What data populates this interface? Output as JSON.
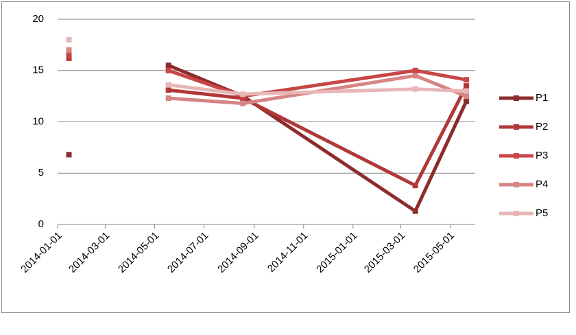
{
  "chart_data": {
    "type": "line",
    "x": [
      "2014-01-15",
      null,
      "2014-05-18",
      "2014-08-18",
      "2015-03-19",
      "2015-05-21"
    ],
    "series": [
      {
        "name": "P1",
        "color": "#8e2b2b",
        "values": [
          6.8,
          null,
          15.5,
          12.5,
          1.3,
          12.0
        ]
      },
      {
        "name": "P2",
        "color": "#b03838",
        "values": [
          16.2,
          null,
          13.1,
          12.3,
          3.8,
          13.5
        ]
      },
      {
        "name": "P3",
        "color": "#c84646",
        "values": [
          16.5,
          null,
          15.0,
          12.5,
          15.0,
          14.1
        ]
      },
      {
        "name": "P4",
        "color": "#d68585",
        "values": [
          17.0,
          null,
          12.3,
          11.8,
          14.5,
          12.5
        ]
      },
      {
        "name": "P5",
        "color": "#e8b6b6",
        "values": [
          18.0,
          null,
          13.6,
          12.7,
          13.2,
          13.0
        ]
      }
    ],
    "xlim": [
      "2014-01-01",
      "2015-06-01"
    ],
    "xticks": [
      "2014-01-01",
      "2014-03-01",
      "2014-05-01",
      "2014-07-01",
      "2014-09-01",
      "2014-11-01",
      "2015-01-01",
      "2015-03-01",
      "2015-05-01"
    ],
    "ylim": [
      0,
      20
    ],
    "yticks": [
      0,
      5,
      10,
      15,
      20
    ],
    "grid": true,
    "legend": "right"
  }
}
